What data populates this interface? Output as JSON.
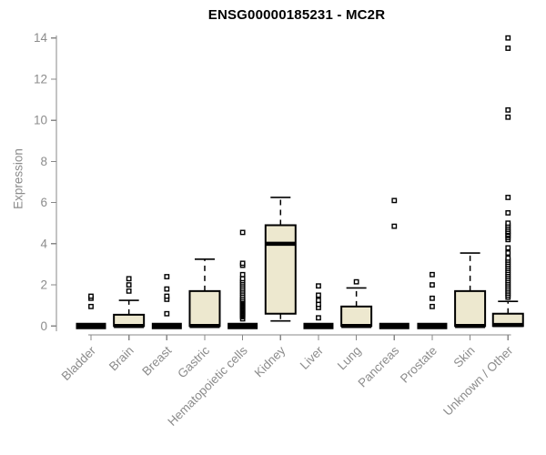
{
  "chart_data": {
    "type": "boxplot",
    "title": "ENSG00000185231 - MC2R",
    "ylabel": "Expression",
    "xlabel": "",
    "ylim": [
      0,
      14
    ],
    "yticks": [
      0,
      2,
      4,
      6,
      8,
      10,
      12,
      14
    ],
    "grid": false,
    "legend": false,
    "axis_color": "#888888",
    "text_color": "#8C8C8C",
    "title_color": "#000000",
    "box_fill": "#EDE8CF",
    "box_stroke": "#000000",
    "categories": [
      "Bladder",
      "Brain",
      "Breast",
      "Gastric",
      "Hematopoietic cells",
      "Kidney",
      "Liver",
      "Lung",
      "Pancreas",
      "Prostate",
      "Skin",
      "Unknown / Other"
    ],
    "boxes": [
      {
        "category": "Bladder",
        "low": 0,
        "q1": 0,
        "median": 0,
        "q3": 0,
        "high": 0,
        "outliers": [
          0.95,
          1.35,
          1.45
        ]
      },
      {
        "category": "Brain",
        "low": 0,
        "q1": 0,
        "median": 0,
        "q3": 0.55,
        "high": 1.25,
        "outliers": [
          1.7,
          2.0,
          2.3
        ]
      },
      {
        "category": "Breast",
        "low": 0,
        "q1": 0,
        "median": 0,
        "q3": 0,
        "high": 0,
        "outliers": [
          0.6,
          1.3,
          1.45,
          1.8,
          2.4
        ]
      },
      {
        "category": "Gastric",
        "low": 0,
        "q1": 0,
        "median": 0,
        "q3": 1.7,
        "high": 3.25,
        "outliers": []
      },
      {
        "category": "Hematopoietic cells",
        "low": 0,
        "q1": 0,
        "median": 0,
        "q3": 0,
        "high": 0,
        "outliers": [
          0.35,
          0.45,
          0.5,
          0.55,
          0.6,
          0.65,
          0.7,
          0.75,
          0.8,
          0.85,
          0.9,
          0.95,
          1.0,
          1.05,
          1.1,
          1.15,
          1.2,
          1.25,
          1.3,
          1.4,
          1.5,
          1.6,
          1.7,
          1.8,
          1.9,
          2.0,
          2.1,
          2.2,
          2.3,
          2.5,
          2.95,
          3.05,
          4.55
        ]
      },
      {
        "category": "Kidney",
        "low": 0.25,
        "q1": 0.6,
        "median": 4.0,
        "q3": 4.9,
        "high": 6.25,
        "outliers": []
      },
      {
        "category": "Liver",
        "low": 0,
        "q1": 0,
        "median": 0,
        "q3": 0,
        "high": 0,
        "outliers": [
          0.4,
          0.9,
          1.05,
          1.25,
          1.5,
          1.95
        ]
      },
      {
        "category": "Lung",
        "low": 0,
        "q1": 0,
        "median": 0,
        "q3": 0.95,
        "high": 1.85,
        "outliers": [
          2.15
        ]
      },
      {
        "category": "Pancreas",
        "low": 0,
        "q1": 0,
        "median": 0,
        "q3": 0,
        "high": 0,
        "outliers": [
          4.85,
          6.1
        ]
      },
      {
        "category": "Prostate",
        "low": 0,
        "q1": 0,
        "median": 0,
        "q3": 0,
        "high": 0,
        "outliers": [
          0.95,
          1.35,
          2.0,
          2.5
        ]
      },
      {
        "category": "Skin",
        "low": 0,
        "q1": 0,
        "median": 0,
        "q3": 1.7,
        "high": 3.55,
        "outliers": []
      },
      {
        "category": "Unknown / Other",
        "low": 0,
        "q1": 0,
        "median": 0.05,
        "q3": 0.6,
        "high": 1.2,
        "outliers": [
          1.4,
          1.5,
          1.6,
          1.7,
          1.8,
          1.9,
          2.0,
          2.1,
          2.2,
          2.3,
          2.4,
          2.5,
          2.6,
          2.7,
          2.8,
          2.9,
          3.0,
          3.1,
          3.2,
          3.3,
          3.55,
          3.8,
          4.2,
          4.3,
          4.4,
          4.45,
          4.55,
          4.6,
          4.7,
          4.8,
          4.9,
          5.0,
          5.5,
          6.25,
          10.15,
          10.5,
          13.5,
          14.0
        ]
      }
    ]
  }
}
